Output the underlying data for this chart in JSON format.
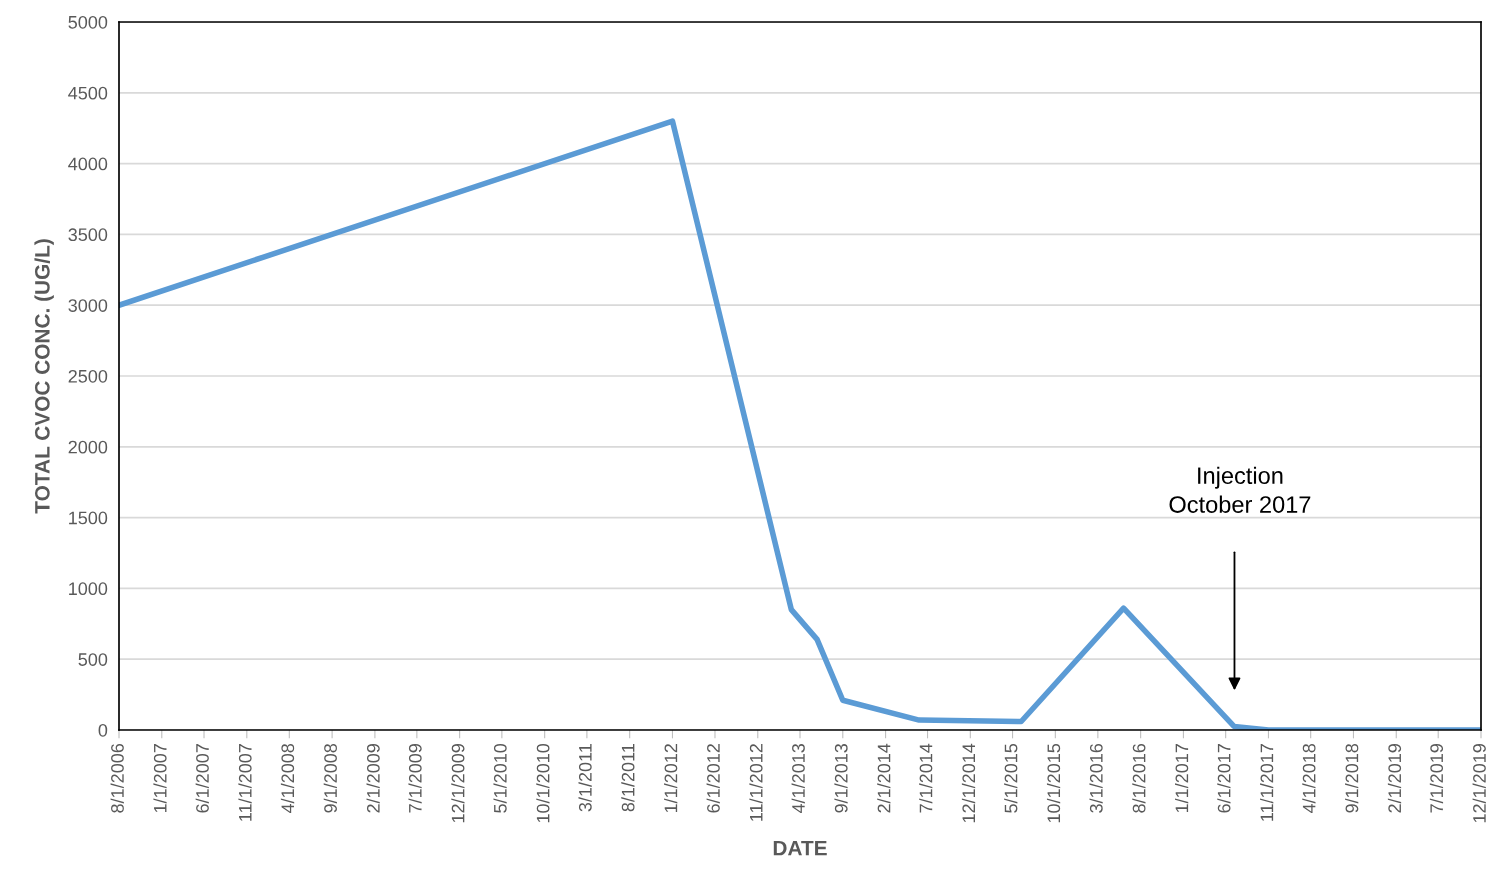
{
  "chart_data": {
    "type": "line",
    "xlabel": "DATE",
    "ylabel": "TOTAL CVOC CONC. (UG/L)",
    "x": [
      "2006-08-01",
      "2012-01-01",
      "2013-03-01",
      "2013-06-01",
      "2013-09-01",
      "2014-06-01",
      "2015-06-01",
      "2016-06-01",
      "2017-07-01",
      "2017-11-01",
      "2019-12-01"
    ],
    "series": [
      {
        "color": "#5b9bd5",
        "values": [
          3000,
          4300,
          850,
          640,
          210,
          70,
          60,
          860,
          25,
          0,
          0
        ]
      }
    ],
    "xlim": [
      "2006-08-01",
      "2019-12-01"
    ],
    "xticks": [
      {
        "value": "2006-08-01",
        "label": "8/1/2006"
      },
      {
        "value": "2007-01-01",
        "label": "1/1/2007"
      },
      {
        "value": "2007-06-01",
        "label": "6/1/2007"
      },
      {
        "value": "2007-11-01",
        "label": "11/1/2007"
      },
      {
        "value": "2008-04-01",
        "label": "4/1/2008"
      },
      {
        "value": "2008-09-01",
        "label": "9/1/2008"
      },
      {
        "value": "2009-02-01",
        "label": "2/1/2009"
      },
      {
        "value": "2009-07-01",
        "label": "7/1/2009"
      },
      {
        "value": "2009-12-01",
        "label": "12/1/2009"
      },
      {
        "value": "2010-05-01",
        "label": "5/1/2010"
      },
      {
        "value": "2010-10-01",
        "label": "10/1/2010"
      },
      {
        "value": "2011-03-01",
        "label": "3/1/2011"
      },
      {
        "value": "2011-08-01",
        "label": "8/1/2011"
      },
      {
        "value": "2012-01-01",
        "label": "1/1/2012"
      },
      {
        "value": "2012-06-01",
        "label": "6/1/2012"
      },
      {
        "value": "2012-11-01",
        "label": "11/1/2012"
      },
      {
        "value": "2013-04-01",
        "label": "4/1/2013"
      },
      {
        "value": "2013-09-01",
        "label": "9/1/2013"
      },
      {
        "value": "2014-02-01",
        "label": "2/1/2014"
      },
      {
        "value": "2014-07-01",
        "label": "7/1/2014"
      },
      {
        "value": "2014-12-01",
        "label": "12/1/2014"
      },
      {
        "value": "2015-05-01",
        "label": "5/1/2015"
      },
      {
        "value": "2015-10-01",
        "label": "10/1/2015"
      },
      {
        "value": "2016-03-01",
        "label": "3/1/2016"
      },
      {
        "value": "2016-08-01",
        "label": "8/1/2016"
      },
      {
        "value": "2017-01-01",
        "label": "1/1/2017"
      },
      {
        "value": "2017-06-01",
        "label": "6/1/2017"
      },
      {
        "value": "2017-11-01",
        "label": "11/1/2017"
      },
      {
        "value": "2018-04-01",
        "label": "4/1/2018"
      },
      {
        "value": "2018-09-01",
        "label": "9/1/2018"
      },
      {
        "value": "2019-02-01",
        "label": "2/1/2019"
      },
      {
        "value": "2019-07-01",
        "label": "7/1/2019"
      },
      {
        "value": "2019-12-01",
        "label": "12/1/2019"
      }
    ],
    "ylim": [
      0,
      5000
    ],
    "yticks": [
      0,
      500,
      1000,
      1500,
      2000,
      2500,
      3000,
      3500,
      4000,
      4500,
      5000
    ],
    "grid": "y",
    "marker": "none",
    "line_style": "solid",
    "legend": false,
    "annotations": [
      "Injection\nOctober 2017"
    ]
  }
}
